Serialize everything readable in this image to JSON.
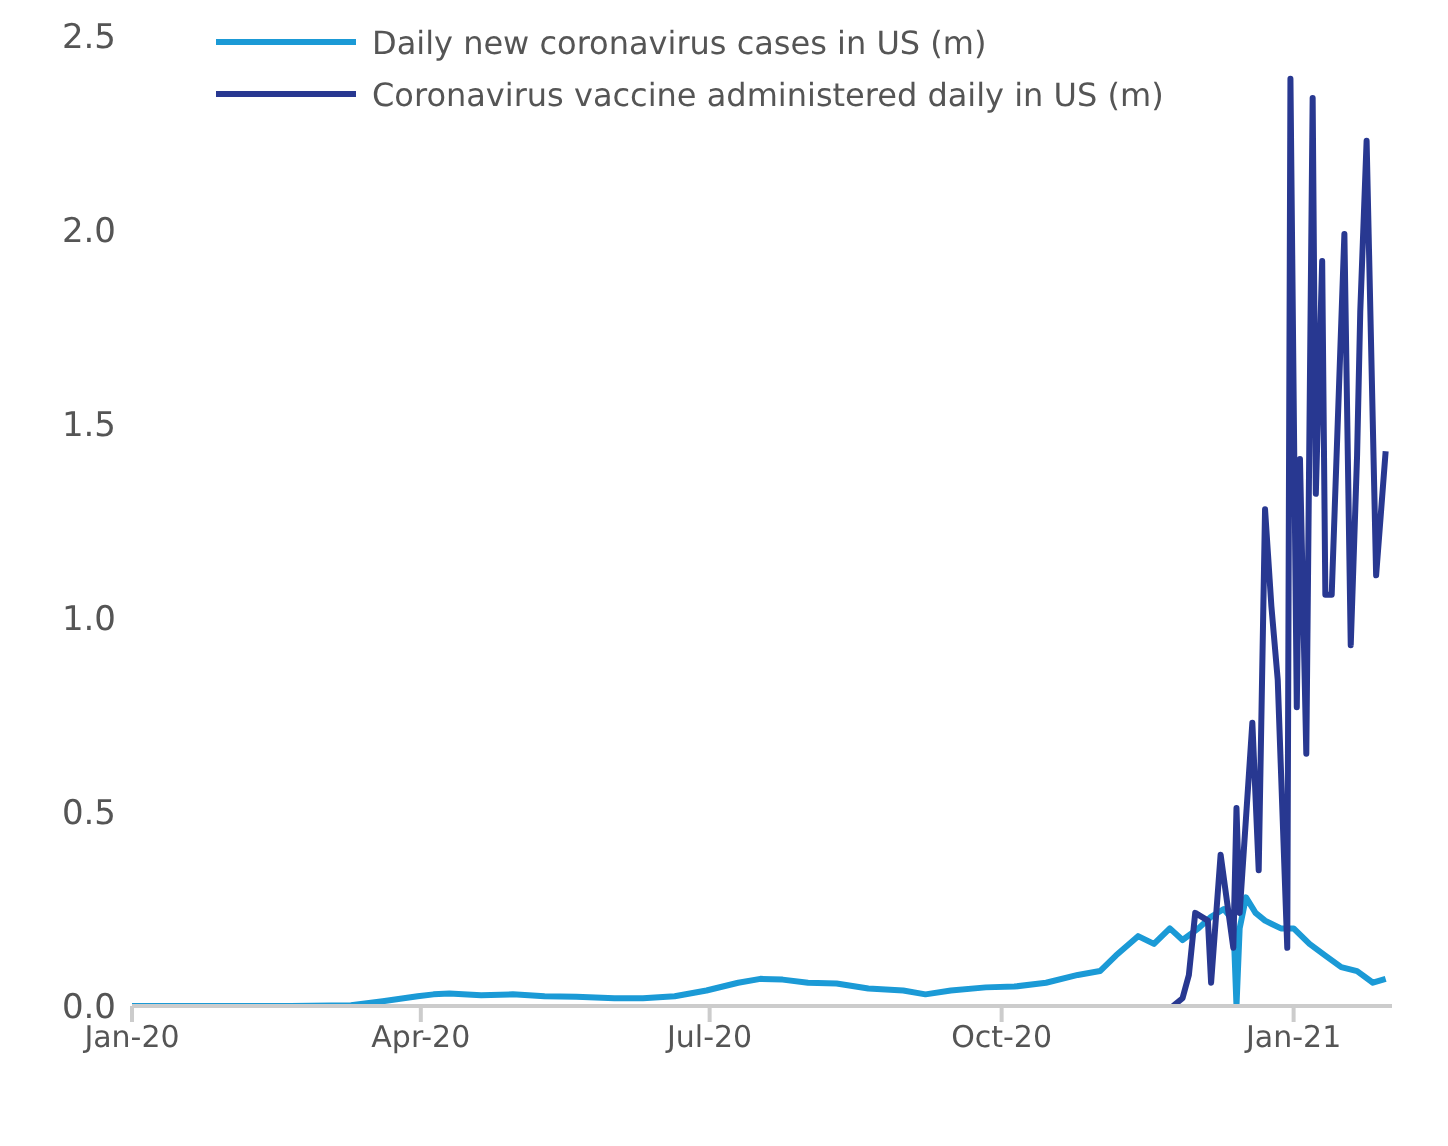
{
  "chart_data": {
    "type": "line",
    "x": [
      "2020-01-01",
      "2020-02-20",
      "2020-03-10",
      "2020-03-20",
      "2020-03-31",
      "2020-04-05",
      "2020-04-10",
      "2020-04-20",
      "2020-04-30",
      "2020-05-10",
      "2020-05-20",
      "2020-06-01",
      "2020-06-10",
      "2020-06-20",
      "2020-06-30",
      "2020-07-10",
      "2020-07-17",
      "2020-07-24",
      "2020-08-01",
      "2020-08-10",
      "2020-08-20",
      "2020-08-31",
      "2020-09-07",
      "2020-09-15",
      "2020-09-26",
      "2020-10-05",
      "2020-10-15",
      "2020-10-25",
      "2020-11-01",
      "2020-11-06",
      "2020-11-13",
      "2020-11-18",
      "2020-11-23",
      "2020-11-27",
      "2020-12-02",
      "2020-12-06",
      "2020-12-10",
      "2020-12-13",
      "2020-12-14",
      "2020-12-15",
      "2020-12-17",
      "2020-12-20",
      "2020-12-23",
      "2020-12-28",
      "2021-01-01",
      "2021-01-06",
      "2021-01-11",
      "2021-01-16",
      "2021-01-21",
      "2021-01-26",
      "2021-01-30"
    ],
    "series": [
      {
        "name": "Daily new coronavirus cases in US (m)",
        "color": "#1b9ad6",
        "values": [
          0,
          0,
          0.002,
          0.012,
          0.025,
          0.03,
          0.032,
          0.028,
          0.03,
          0.025,
          0.024,
          0.02,
          0.02,
          0.025,
          0.04,
          0.06,
          0.07,
          0.068,
          0.06,
          0.058,
          0.045,
          0.04,
          0.03,
          0.04,
          0.048,
          0.05,
          0.06,
          0.08,
          0.09,
          0.13,
          0.18,
          0.16,
          0.2,
          0.17,
          0.2,
          0.23,
          0.25,
          0.22,
          0,
          0.2,
          0.28,
          0.24,
          0.22,
          0.2,
          0.2,
          0.16,
          0.13,
          0.1,
          0.09,
          0.06,
          0.07
        ]
      },
      {
        "name": "Coronavirus vaccine administered daily in US (m)",
        "color": "#283891",
        "x": [
          "2020-11-24",
          "2020-11-27",
          "2020-11-29",
          "2020-12-01",
          "2020-12-05",
          "2020-12-06",
          "2020-12-09",
          "2020-12-13",
          "2020-12-14",
          "2020-12-15",
          "2020-12-19",
          "2020-12-21",
          "2020-12-23",
          "2020-12-25",
          "2020-12-27",
          "2020-12-30",
          "2020-12-31",
          "2021-01-02",
          "2021-01-03",
          "2021-01-05",
          "2021-01-07",
          "2021-01-08",
          "2021-01-10",
          "2021-01-11",
          "2021-01-13",
          "2021-01-17",
          "2021-01-19",
          "2021-01-21",
          "2021-01-22",
          "2021-01-24",
          "2021-01-27",
          "2021-01-30"
        ],
        "values": [
          0,
          0.02,
          0.08,
          0.24,
          0.22,
          0.06,
          0.39,
          0.15,
          0.51,
          0.24,
          0.73,
          0.35,
          1.28,
          1.03,
          0.84,
          0.15,
          2.39,
          0.77,
          1.41,
          0.65,
          2.34,
          1.32,
          1.92,
          1.06,
          1.06,
          1.99,
          0.93,
          1.42,
          1.79,
          2.23,
          1.11,
          1.43
        ]
      }
    ],
    "xlim": [
      "2020-01-01",
      "2021-02-01"
    ],
    "xticks": [
      {
        "value": "2020-01-01",
        "label": "Jan-20"
      },
      {
        "value": "2020-04-01",
        "label": "Apr-20"
      },
      {
        "value": "2020-07-01",
        "label": "Jul-20"
      },
      {
        "value": "2020-10-01",
        "label": "Oct-20"
      },
      {
        "value": "2021-01-01",
        "label": "Jan-21"
      }
    ],
    "ylim": [
      0,
      2.5
    ],
    "yticks": [
      {
        "value": 0,
        "label": "0.0"
      },
      {
        "value": 0.5,
        "label": "0.5"
      },
      {
        "value": 1,
        "label": "1.0"
      },
      {
        "value": 1.5,
        "label": "1.5"
      },
      {
        "value": 2,
        "label": "2.0"
      },
      {
        "value": 2.5,
        "label": "2.5"
      }
    ],
    "legend": "top left",
    "grid": false,
    "marker": "none",
    "line_style": "solid"
  }
}
